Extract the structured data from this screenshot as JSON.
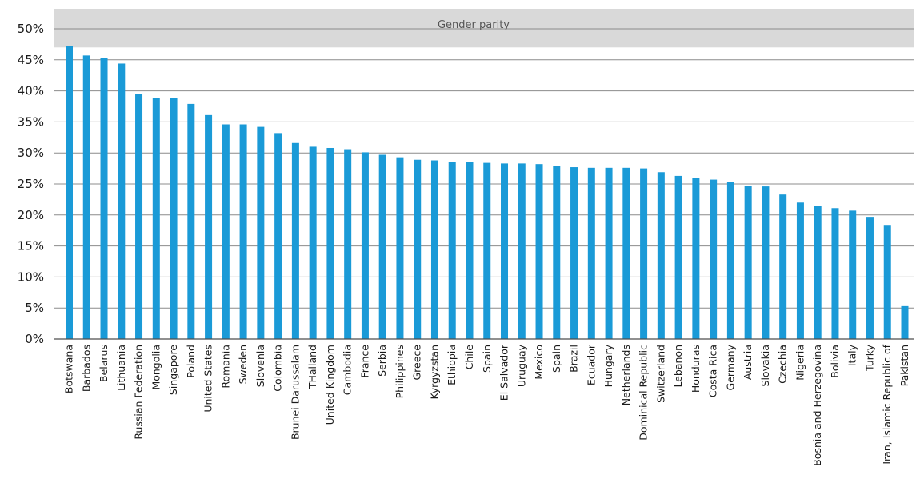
{
  "chart_data": {
    "type": "bar",
    "title": "",
    "xlabel": "",
    "ylabel": "",
    "ylim": [
      0,
      50
    ],
    "yticks": [
      0,
      5,
      10,
      15,
      20,
      25,
      30,
      35,
      40,
      45,
      50
    ],
    "ytick_labels": [
      "0%",
      "5%",
      "10%",
      "15%",
      "20%",
      "25%",
      "30%",
      "35%",
      "40%",
      "45%",
      "50%"
    ],
    "grid": true,
    "bar_color": "#1a9ad7",
    "band": {
      "label": "Gender parity",
      "from": 47,
      "to": 50,
      "color": "#d9d9d9"
    },
    "categories": [
      "Botswana",
      "Barbados",
      "Belarus",
      "Lithuania",
      "Russian Federation",
      "Mongolia",
      "Singapore",
      "Poland",
      "United States",
      "Romania",
      "Sweden",
      "Slovenia",
      "Colombia",
      "Brunei Darussalam",
      "THailand",
      "United Kingdom",
      "Cambodia",
      "France",
      "Serbia",
      "Philippines",
      "Greece",
      "Kyrgyzstan",
      "Ethiopia",
      "Chile",
      "Spain",
      "El Salvador",
      "Uruguay",
      "Mexico",
      "Spain",
      "Brazil",
      "Ecuador",
      "Hungary",
      "Netherlands",
      "Dominical Republic",
      "Switzerland",
      "Lebanon",
      "Honduras",
      "Costa Rica",
      "Germany",
      "Austria",
      "Slovakia",
      "Czechia",
      "Nigeria",
      "Bosnia and Herzegovina",
      "Bolivia",
      "Italy",
      "Turky",
      "Iran, Islamic Republic of",
      "Pakistan"
    ],
    "values": [
      47.2,
      45.7,
      45.3,
      44.4,
      39.5,
      38.9,
      38.9,
      37.9,
      36.1,
      34.6,
      34.6,
      34.2,
      33.2,
      31.6,
      31.0,
      30.8,
      30.6,
      30.1,
      29.7,
      29.3,
      28.9,
      28.8,
      28.6,
      28.6,
      28.4,
      28.3,
      28.3,
      28.2,
      27.9,
      27.7,
      27.6,
      27.6,
      27.6,
      27.5,
      26.9,
      26.3,
      26.0,
      25.7,
      25.3,
      24.7,
      24.6,
      23.3,
      22.0,
      21.4,
      21.1,
      20.7,
      19.7,
      18.4,
      5.3
    ]
  }
}
